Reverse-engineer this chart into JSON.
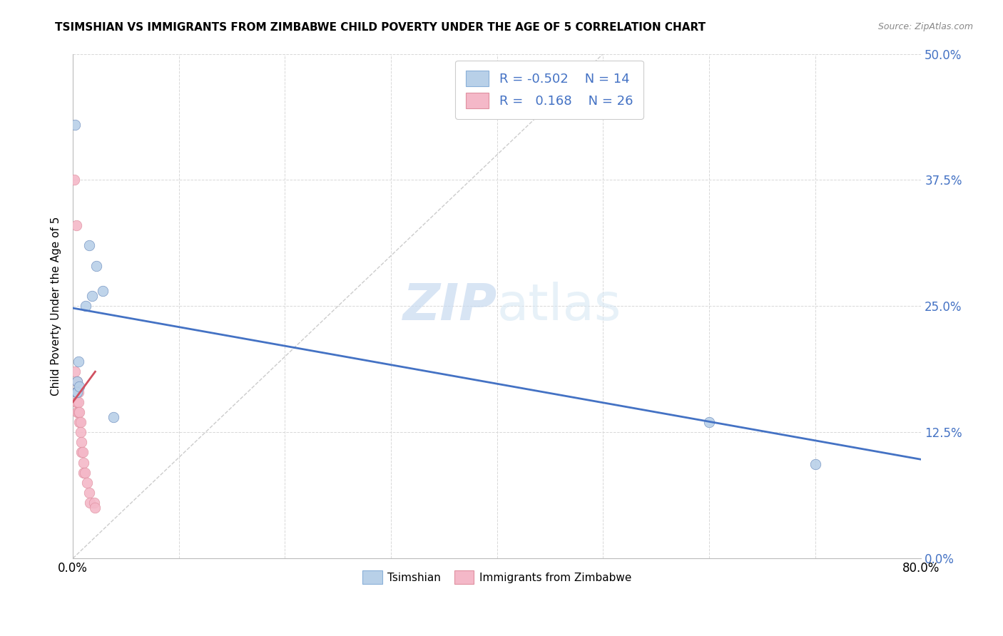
{
  "title": "TSIMSHIAN VS IMMIGRANTS FROM ZIMBABWE CHILD POVERTY UNDER THE AGE OF 5 CORRELATION CHART",
  "source": "Source: ZipAtlas.com",
  "ylabel_label": "Child Poverty Under the Age of 5",
  "legend_label1": "Tsimshian",
  "legend_label2": "Immigrants from Zimbabwe",
  "R1": -0.502,
  "N1": 14,
  "R2": 0.168,
  "N2": 26,
  "color_blue": "#b8d0e8",
  "color_pink": "#f4b8c8",
  "line_blue": "#4472c4",
  "line_pink": "#d05060",
  "tsimshian_x": [
    0.002,
    0.015,
    0.022,
    0.018,
    0.005,
    0.004,
    0.003,
    0.028,
    0.012,
    0.6,
    0.7,
    0.004,
    0.006,
    0.038
  ],
  "tsimshian_y": [
    0.43,
    0.31,
    0.29,
    0.26,
    0.195,
    0.175,
    0.165,
    0.265,
    0.25,
    0.135,
    0.093,
    0.165,
    0.17,
    0.14
  ],
  "zimbabwe_x": [
    0.001,
    0.002,
    0.003,
    0.003,
    0.003,
    0.004,
    0.004,
    0.004,
    0.005,
    0.005,
    0.005,
    0.006,
    0.006,
    0.007,
    0.007,
    0.008,
    0.008,
    0.009,
    0.01,
    0.01,
    0.011,
    0.013,
    0.015,
    0.016,
    0.02,
    0.021
  ],
  "zimbabwe_y": [
    0.375,
    0.185,
    0.33,
    0.165,
    0.155,
    0.175,
    0.155,
    0.145,
    0.165,
    0.155,
    0.145,
    0.145,
    0.135,
    0.135,
    0.125,
    0.115,
    0.105,
    0.105,
    0.095,
    0.085,
    0.085,
    0.075,
    0.065,
    0.055,
    0.055,
    0.05
  ],
  "xmin": 0.0,
  "xmax": 0.8,
  "ymin": 0.0,
  "ymax": 0.5,
  "blue_line_x0": 0.0,
  "blue_line_y0": 0.248,
  "blue_line_x1": 0.8,
  "blue_line_y1": 0.098,
  "pink_line_x0": 0.0,
  "pink_line_y0": 0.155,
  "pink_line_x1": 0.021,
  "pink_line_y1": 0.185,
  "watermark_zip": "ZIP",
  "watermark_atlas": "atlas"
}
